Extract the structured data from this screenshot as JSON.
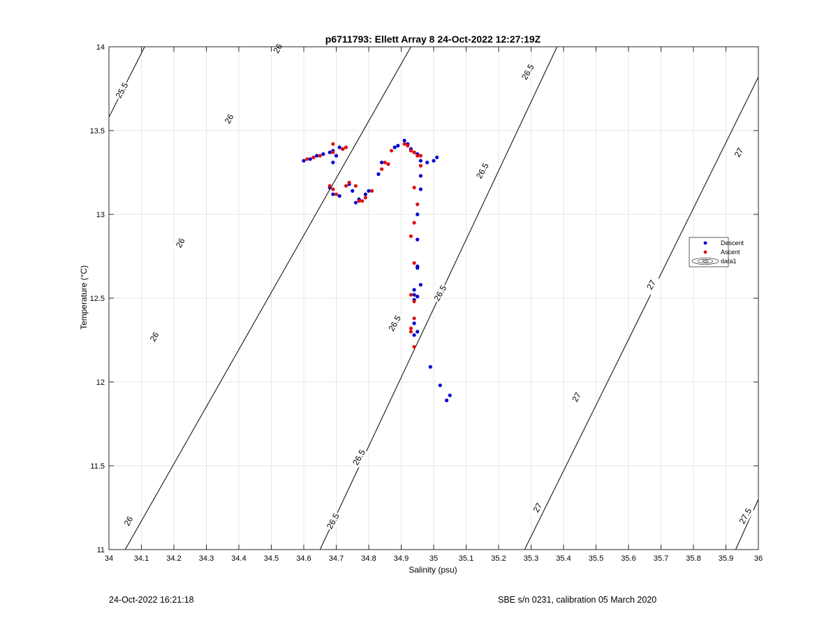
{
  "chart_data": {
    "type": "scatter",
    "title": "p6711793: Ellett Array 8 24-Oct-2022 12:27:19Z",
    "xlabel": "Salinity (psu)",
    "ylabel": "Temperature (°C)",
    "xlim": [
      34,
      36
    ],
    "ylim": [
      11,
      14
    ],
    "xticks": [
      "34",
      "34.1",
      "34.2",
      "34.3",
      "34.4",
      "34.5",
      "34.6",
      "34.7",
      "34.8",
      "34.9",
      "35",
      "35.1",
      "35.2",
      "35.3",
      "35.4",
      "35.5",
      "35.6",
      "35.7",
      "35.8",
      "35.9",
      "36"
    ],
    "yticks": [
      "11",
      "11.5",
      "12",
      "12.5",
      "13",
      "13.5",
      "14"
    ],
    "grid": true,
    "legend_position": "right",
    "legend": [
      "Descent",
      "Ascent",
      "data1"
    ],
    "colors": {
      "descent": "#0000cc",
      "ascent": "#dd1111",
      "contour": "#000000",
      "grid": "#e6e6e6"
    },
    "series": [
      {
        "name": "Descent",
        "points": [
          [
            34.6,
            13.32
          ],
          [
            34.62,
            13.33
          ],
          [
            34.64,
            13.35
          ],
          [
            34.66,
            13.36
          ],
          [
            34.68,
            13.37
          ],
          [
            34.69,
            13.38
          ],
          [
            34.7,
            13.35
          ],
          [
            34.69,
            13.31
          ],
          [
            34.71,
            13.4
          ],
          [
            34.72,
            13.39
          ],
          [
            34.68,
            13.16
          ],
          [
            34.69,
            13.12
          ],
          [
            34.71,
            13.11
          ],
          [
            34.74,
            13.18
          ],
          [
            34.75,
            13.14
          ],
          [
            34.76,
            13.07
          ],
          [
            34.77,
            13.09
          ],
          [
            34.79,
            13.12
          ],
          [
            34.8,
            13.14
          ],
          [
            34.83,
            13.24
          ],
          [
            34.84,
            13.31
          ],
          [
            34.86,
            13.3
          ],
          [
            34.88,
            13.4
          ],
          [
            34.89,
            13.41
          ],
          [
            34.91,
            13.44
          ],
          [
            34.92,
            13.42
          ],
          [
            34.93,
            13.39
          ],
          [
            34.94,
            13.37
          ],
          [
            34.95,
            13.36
          ],
          [
            34.96,
            13.32
          ],
          [
            34.98,
            13.31
          ],
          [
            35.0,
            13.32
          ],
          [
            35.01,
            13.34
          ],
          [
            34.96,
            13.23
          ],
          [
            34.96,
            13.15
          ],
          [
            34.95,
            13.0
          ],
          [
            34.95,
            12.85
          ],
          [
            34.95,
            12.69
          ],
          [
            34.95,
            12.68
          ],
          [
            34.96,
            12.58
          ],
          [
            34.94,
            12.55
          ],
          [
            34.94,
            12.52
          ],
          [
            34.95,
            12.51
          ],
          [
            34.94,
            12.49
          ],
          [
            34.94,
            12.35
          ],
          [
            34.95,
            12.3
          ],
          [
            34.94,
            12.28
          ],
          [
            34.99,
            12.09
          ],
          [
            35.02,
            11.98
          ],
          [
            35.05,
            11.92
          ],
          [
            35.04,
            11.89
          ]
        ]
      },
      {
        "name": "Ascent",
        "points": [
          [
            34.61,
            13.33
          ],
          [
            34.63,
            13.34
          ],
          [
            34.65,
            13.35
          ],
          [
            34.69,
            13.42
          ],
          [
            34.69,
            13.37
          ],
          [
            34.72,
            13.39
          ],
          [
            34.73,
            13.4
          ],
          [
            34.68,
            13.17
          ],
          [
            34.69,
            13.15
          ],
          [
            34.7,
            13.12
          ],
          [
            34.73,
            13.17
          ],
          [
            34.74,
            13.19
          ],
          [
            34.76,
            13.17
          ],
          [
            34.77,
            13.08
          ],
          [
            34.78,
            13.08
          ],
          [
            34.79,
            13.1
          ],
          [
            34.81,
            13.14
          ],
          [
            34.84,
            13.27
          ],
          [
            34.85,
            13.31
          ],
          [
            34.86,
            13.3
          ],
          [
            34.87,
            13.38
          ],
          [
            34.91,
            13.42
          ],
          [
            34.92,
            13.41
          ],
          [
            34.93,
            13.38
          ],
          [
            34.94,
            13.37
          ],
          [
            34.95,
            13.35
          ],
          [
            34.96,
            13.35
          ],
          [
            34.96,
            13.29
          ],
          [
            34.94,
            13.16
          ],
          [
            34.95,
            13.06
          ],
          [
            34.94,
            12.95
          ],
          [
            34.93,
            12.87
          ],
          [
            34.94,
            12.71
          ],
          [
            34.93,
            12.52
          ],
          [
            34.94,
            12.48
          ],
          [
            34.94,
            12.38
          ],
          [
            34.93,
            12.32
          ],
          [
            34.93,
            12.3
          ],
          [
            34.94,
            12.21
          ]
        ]
      }
    ],
    "contour_labels": [
      "25.5",
      "26",
      "26.5",
      "27",
      "27.5"
    ]
  },
  "footer": {
    "left": "24-Oct-2022 16:21:18",
    "right": "SBE s/n 0231, calibration 05 March 2020"
  }
}
